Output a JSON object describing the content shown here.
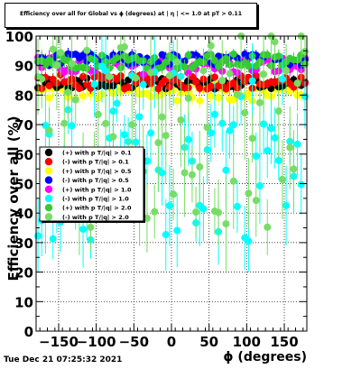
{
  "chart_data": {
    "type": "scatter",
    "title": "Efficiency over all for Global vs ϕ (degrees) at | η | <= 1.0 at pT > 0.11",
    "xlabel": "ϕ (degrees)",
    "ylabel": "Efficiency over all (%)",
    "xlim": [
      -180,
      180
    ],
    "ylim": [
      0,
      100
    ],
    "xticks": [
      -150,
      -100,
      -50,
      0,
      50,
      100,
      150
    ],
    "yticks": [
      0,
      10,
      20,
      30,
      40,
      50,
      60,
      70,
      80,
      90,
      100
    ],
    "grid": true,
    "legend_position": "left-middle",
    "series": [
      {
        "name": "(+) with p T/|q| > 0.1",
        "color": "#000000",
        "values_min": 82,
        "values_max": 86,
        "error": 1.5
      },
      {
        "name": "(-) with p T/|q| > 0.1",
        "color": "#ff0000",
        "values_min": 82,
        "values_max": 87,
        "error": 1.5
      },
      {
        "name": "(+) with p T/|q| > 0.5",
        "color": "#ffff00",
        "values_min": 78,
        "values_max": 84,
        "error": 2.5
      },
      {
        "name": "(-) with p T/|q| > 0.5",
        "color": "#0000ff",
        "values_min": 90,
        "values_max": 94,
        "error": 1.5
      },
      {
        "name": "(+) with p T/|q| > 1.0",
        "color": "#ff00ff",
        "values_min": 87,
        "values_max": 93,
        "error": 2
      },
      {
        "name": "(-) with p T/|q| > 1.0",
        "color": "#00ffff",
        "values_min": 30,
        "values_max": 90,
        "error": 10
      },
      {
        "name": "(+) with p T/|q| > 2.0",
        "color": "#33cc33",
        "values_min": 89,
        "values_max": 94,
        "error": 2
      },
      {
        "name": "(-) with p T/|q| > 2.0",
        "color": "#77dd66",
        "values_min": 35,
        "values_max": 100,
        "error": 12
      }
    ]
  },
  "footer": {
    "timestamp": "Tue Dec 21 07:25:32 2021"
  }
}
